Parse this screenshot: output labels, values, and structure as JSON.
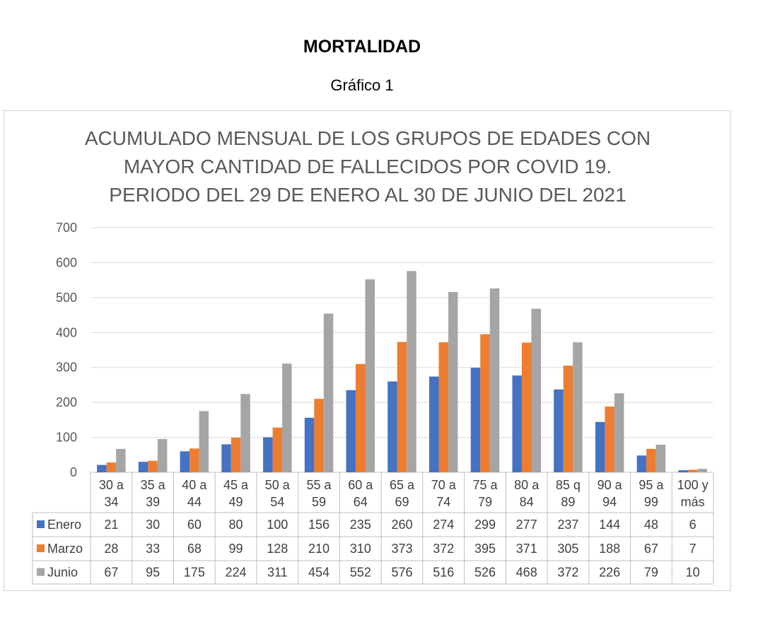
{
  "document": {
    "title": "MORTALIDAD",
    "subtitle": "Gráfico 1"
  },
  "chart_data": {
    "type": "bar",
    "title_lines": [
      "ACUMULADO MENSUAL DE  LOS GRUPOS DE EDADES CON",
      "MAYOR CANTIDAD DE FALLECIDOS POR COVID 19.",
      "PERIODO DEL 29 DE ENERO AL 30 DE JUNIO DEL 2021"
    ],
    "categories": [
      [
        "30 a",
        "34"
      ],
      [
        "35 a",
        "39"
      ],
      [
        "40 a",
        "44"
      ],
      [
        "45 a",
        "49"
      ],
      [
        "50 a",
        "54"
      ],
      [
        "55 a",
        "59"
      ],
      [
        "60 a",
        "64"
      ],
      [
        "65 a",
        "69"
      ],
      [
        "70 a",
        "74"
      ],
      [
        "75 a",
        "79"
      ],
      [
        "80 a",
        "84"
      ],
      [
        "85 q",
        "89"
      ],
      [
        "90 a",
        "94"
      ],
      [
        "95 a",
        "99"
      ],
      [
        "100 y",
        "más"
      ]
    ],
    "series": [
      {
        "name": "Enero",
        "color": "#4472C4",
        "values": [
          21,
          30,
          60,
          80,
          100,
          156,
          235,
          260,
          274,
          299,
          277,
          237,
          144,
          48,
          6
        ]
      },
      {
        "name": "Marzo",
        "color": "#ED7D31",
        "values": [
          28,
          33,
          68,
          99,
          128,
          210,
          310,
          373,
          372,
          395,
          371,
          305,
          188,
          67,
          7
        ]
      },
      {
        "name": "Junio",
        "color": "#A5A5A5",
        "values": [
          67,
          95,
          175,
          224,
          311,
          454,
          552,
          576,
          516,
          526,
          468,
          372,
          226,
          79,
          10
        ]
      }
    ],
    "ylim": [
      0,
      700
    ],
    "yticks": [
      0,
      100,
      200,
      300,
      400,
      500,
      600,
      700
    ],
    "grid": true,
    "legend": "data-table",
    "colors": {
      "title": "#595959",
      "grid": "#d9d9d9",
      "text": "#404040"
    }
  }
}
